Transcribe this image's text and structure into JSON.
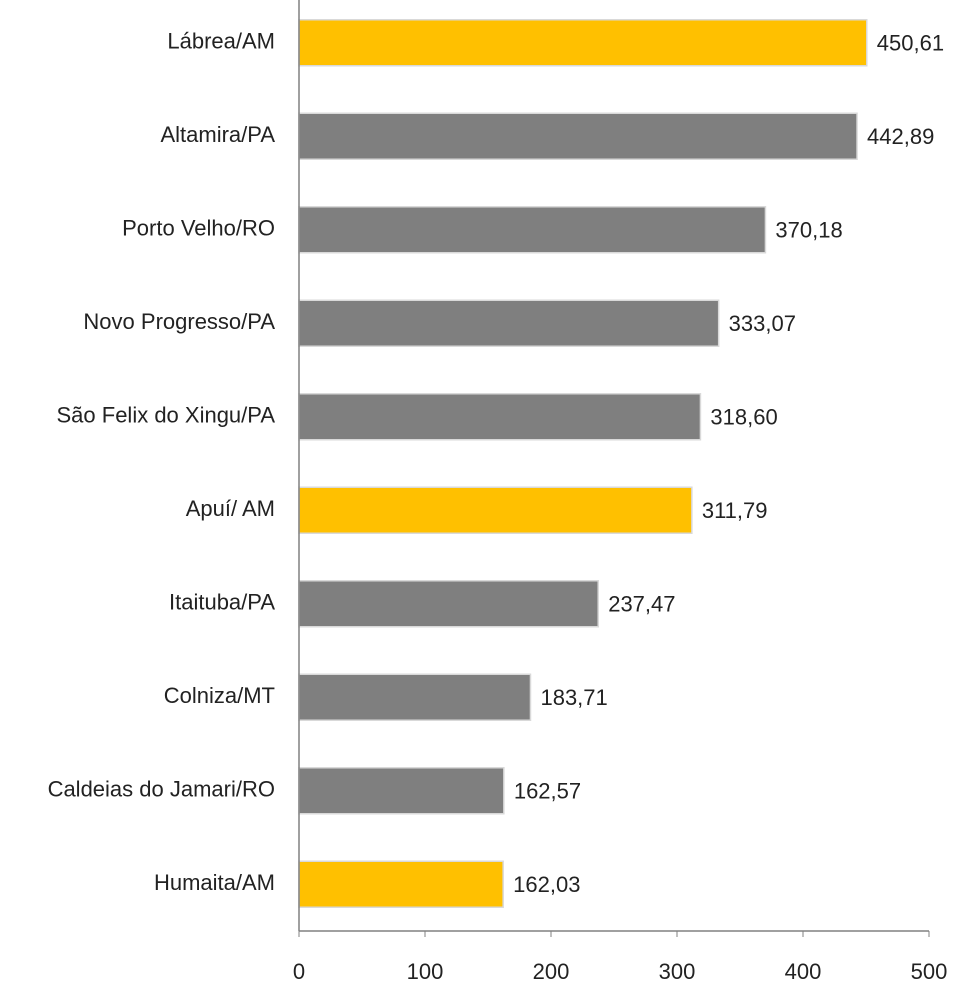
{
  "chart_data": {
    "type": "bar",
    "orientation": "horizontal",
    "categories": [
      "Lábrea/AM",
      "Altamira/PA",
      "Porto Velho/RO",
      "Novo Progresso/PA",
      "São Felix do Xingu/PA",
      "Apuí/ AM",
      "Itaituba/PA",
      "Colniza/MT",
      "Caldeias do Jamari/RO",
      "Humaita/AM"
    ],
    "values": [
      450.61,
      442.89,
      370.18,
      333.07,
      318.6,
      311.79,
      237.47,
      183.71,
      162.57,
      162.03
    ],
    "value_labels": [
      "450,61",
      "442,89",
      "370,18",
      "333,07",
      "318,60",
      "311,79",
      "237,47",
      "183,71",
      "162,57",
      "162,03"
    ],
    "colors": [
      "#FFC000",
      "#7F7F7F",
      "#7F7F7F",
      "#7F7F7F",
      "#7F7F7F",
      "#FFC000",
      "#7F7F7F",
      "#7F7F7F",
      "#7F7F7F",
      "#FFC000"
    ],
    "xlim": [
      0,
      500
    ],
    "xticks": [
      0,
      100,
      200,
      300,
      400,
      500
    ],
    "grid": false
  }
}
